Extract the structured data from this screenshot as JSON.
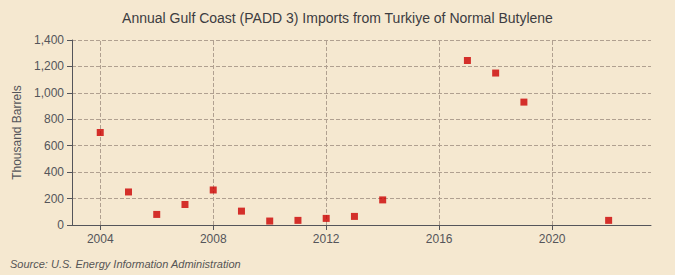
{
  "chart_data": {
    "type": "scatter",
    "title": "Annual Gulf Coast (PADD 3) Imports from Turkiye of Normal Butylene",
    "ylabel": "Thousand Barrels",
    "annotation": "Source: U.S. Energy Information Administration",
    "x": [
      2004,
      2005,
      2006,
      2007,
      2008,
      2009,
      2010,
      2011,
      2012,
      2013,
      2014,
      2017,
      2018,
      2019,
      2022
    ],
    "values": [
      700,
      250,
      80,
      155,
      265,
      105,
      30,
      35,
      50,
      65,
      190,
      1245,
      1150,
      930,
      35
    ],
    "color": "#cc0000",
    "marker": "square",
    "xlim": [
      2003.0,
      2023.5
    ],
    "xticks": [
      2004,
      2008,
      2012,
      2016,
      2020
    ],
    "ylim": [
      0,
      1400
    ],
    "yticks": [
      0,
      200,
      400,
      600,
      800,
      {
        "value": 1000,
        "label": "1,000"
      },
      {
        "value": 1200,
        "label": "1,200"
      },
      {
        "value": 1400,
        "label": "1,400"
      }
    ],
    "grid": true
  }
}
